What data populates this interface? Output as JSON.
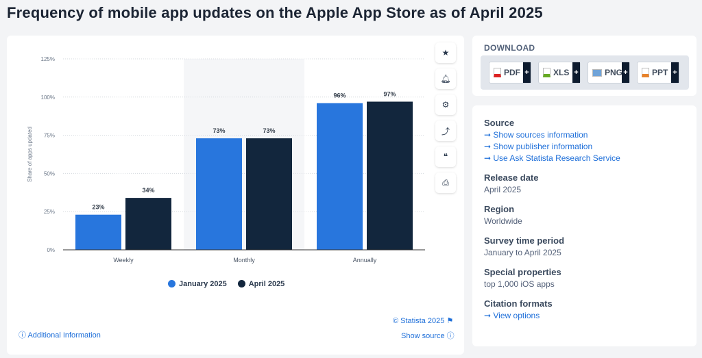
{
  "title": "Frequency of mobile app updates on the Apple App Store as of April 2025",
  "chart_data": {
    "type": "bar",
    "categories": [
      "Weekly",
      "Monthly",
      "Annually"
    ],
    "series": [
      {
        "name": "January 2025",
        "values": [
          23,
          73,
          96
        ],
        "color": "#2876dd"
      },
      {
        "name": "April 2025",
        "values": [
          34,
          73,
          97
        ],
        "color": "#12263d"
      }
    ],
    "data_labels": [
      [
        "23%",
        "73%",
        "96%"
      ],
      [
        "34%",
        "73%",
        "97%"
      ]
    ],
    "ylabel": "Share of apps updated",
    "ylim": [
      0,
      125
    ],
    "yticks": [
      "0%",
      "25%",
      "50%",
      "75%",
      "100%",
      "125%"
    ],
    "grid": true,
    "legend": "bottom"
  },
  "toolbar": [
    "star-icon",
    "bell-icon",
    "gear-icon",
    "share-icon",
    "quote-icon",
    "print-icon"
  ],
  "credit": "© Statista 2025",
  "additional_info": "Additional Information",
  "show_source": "Show source",
  "download": {
    "heading": "DOWNLOAD",
    "buttons": [
      "PDF",
      "XLS",
      "PNG",
      "PPT"
    ],
    "plus": "+"
  },
  "info": {
    "source_h": "Source",
    "links": [
      "Show sources information",
      "Show publisher information",
      "Use Ask Statista Research Service"
    ],
    "release_h": "Release date",
    "release": "April 2025",
    "region_h": "Region",
    "region": "Worldwide",
    "survey_h": "Survey time period",
    "survey": "January to April 2025",
    "special_h": "Special properties",
    "special": "top 1,000 iOS apps",
    "citation_h": "Citation formats",
    "citation": "View options"
  }
}
